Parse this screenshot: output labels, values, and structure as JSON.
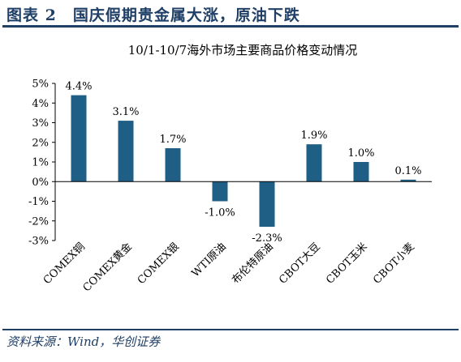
{
  "figure": {
    "title": "图表 2　国庆假期贵金属大涨，原油下跌",
    "source": "资料来源：Wind，华创证券"
  },
  "colors": {
    "bar": "#1f5f86",
    "accent": "#1f3f66"
  },
  "chart_data": {
    "type": "bar",
    "title": "10/1-10/7海外市场主要商品价格变动情况",
    "categories": [
      "COMEX铜",
      "COMEX黄金",
      "COMEX银",
      "WTI原油",
      "布伦特原油",
      "CBOT大豆",
      "CBOT玉米",
      "CBOT小麦"
    ],
    "values": [
      4.4,
      3.1,
      1.7,
      -1.0,
      -2.3,
      1.9,
      1.0,
      0.1
    ],
    "value_labels": [
      "4.4%",
      "3.1%",
      "1.7%",
      "-1.0%",
      "-2.3%",
      "1.9%",
      "1.0%",
      "0.1%"
    ],
    "ylim": [
      -3,
      5
    ],
    "yticks": [
      "5%",
      "4%",
      "3%",
      "2%",
      "1%",
      "0%",
      "-1%",
      "-2%",
      "-3%"
    ],
    "ytick_values": [
      5,
      4,
      3,
      2,
      1,
      0,
      -1,
      -2,
      -3
    ],
    "xlabel": "",
    "ylabel": "",
    "grid": false,
    "legend": "none"
  }
}
